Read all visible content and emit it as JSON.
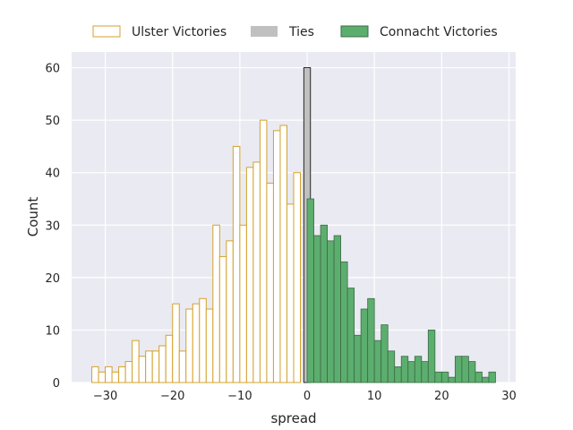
{
  "chart_data": {
    "type": "bar",
    "xlabel": "spread",
    "ylabel": "Count",
    "xlim": [
      -35,
      31
    ],
    "ylim": [
      0,
      63
    ],
    "bin_width": 1,
    "grid": true,
    "legend_position": "top",
    "x_ticks": [
      -30,
      -20,
      -10,
      0,
      10,
      20,
      30
    ],
    "y_ticks": [
      0,
      10,
      20,
      30,
      40,
      50,
      60
    ],
    "x_tick_labels": [
      "−30",
      "−20",
      "−10",
      "0",
      "10",
      "20",
      "30"
    ],
    "y_tick_labels": [
      "0",
      "10",
      "20",
      "30",
      "40",
      "50",
      "60"
    ],
    "series": [
      {
        "name": "Ulster Victories",
        "style": "step",
        "edge_color": "#d4a12c",
        "fill_color": "#ffffff",
        "bin_starts": [
          -32,
          -31,
          -30,
          -29,
          -28,
          -27,
          -26,
          -25,
          -24,
          -23,
          -22,
          -21,
          -20,
          -19,
          -18,
          -17,
          -16,
          -15,
          -14,
          -13,
          -12,
          -11,
          -10,
          -9,
          -8,
          -7,
          -6,
          -5,
          -4,
          -3,
          -2,
          -1
        ],
        "values": [
          3,
          2,
          3,
          2,
          3,
          4,
          8,
          5,
          6,
          6,
          7,
          9,
          15,
          6,
          14,
          15,
          16,
          14,
          30,
          24,
          27,
          45,
          30,
          41,
          42,
          50,
          38,
          48,
          49,
          34,
          40,
          0
        ]
      },
      {
        "name": "Ties",
        "style": "bar",
        "edge_color": "#000000",
        "fill_color": "#c0c0c0",
        "bin_starts": [
          -0.5
        ],
        "values": [
          60
        ]
      },
      {
        "name": "Connacht Victories",
        "style": "bar",
        "edge_color": "#3c6b46",
        "fill_color": "#5cae6e",
        "bin_starts": [
          0,
          1,
          2,
          3,
          4,
          5,
          6,
          7,
          8,
          9,
          10,
          11,
          12,
          13,
          14,
          15,
          16,
          17,
          18,
          19,
          20,
          21,
          22,
          23,
          24,
          25,
          26,
          27,
          28
        ],
        "values": [
          35,
          28,
          30,
          27,
          28,
          23,
          18,
          9,
          14,
          16,
          8,
          11,
          6,
          3,
          5,
          4,
          5,
          4,
          10,
          2,
          2,
          1,
          5,
          5,
          4,
          2,
          1,
          2,
          0
        ]
      }
    ]
  }
}
